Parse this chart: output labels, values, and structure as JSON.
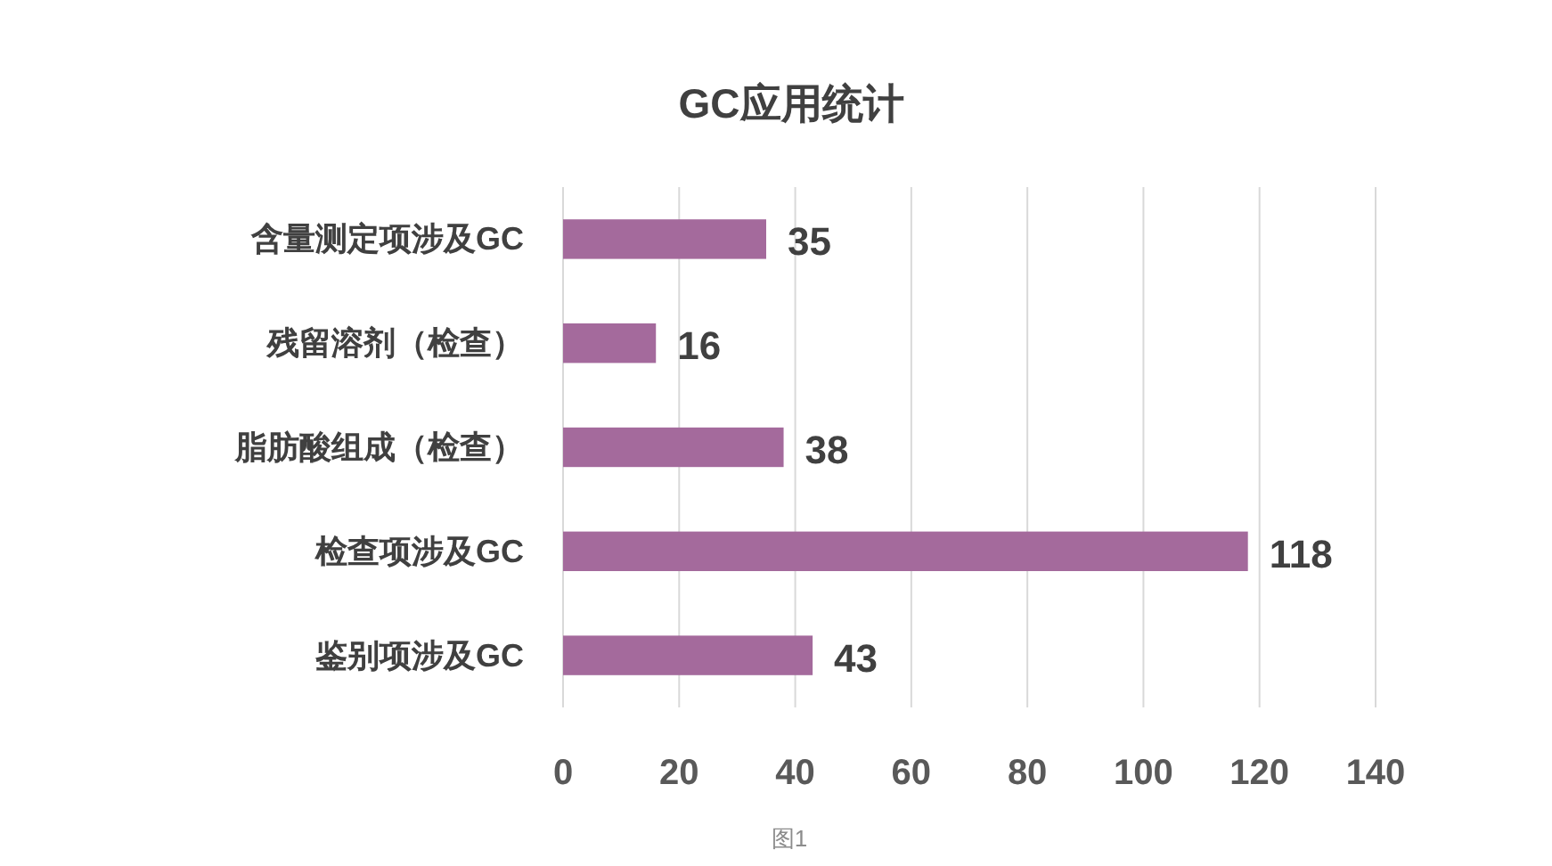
{
  "chart_data": {
    "type": "bar",
    "orientation": "horizontal",
    "title": "GC应用统计",
    "categories": [
      "含量测定项涉及GC",
      "残留溶剂（检查）",
      "脂肪酸组成（检查）",
      "检查项涉及GC",
      "鉴别项涉及GC"
    ],
    "values": [
      35,
      16,
      38,
      118,
      43
    ],
    "color": "#a46a9c",
    "xlim": [
      0,
      140
    ],
    "xticks": [
      0,
      20,
      40,
      60,
      80,
      100,
      120,
      140
    ],
    "grid": "x",
    "data_labels": true,
    "annotations": [
      "图1"
    ]
  }
}
